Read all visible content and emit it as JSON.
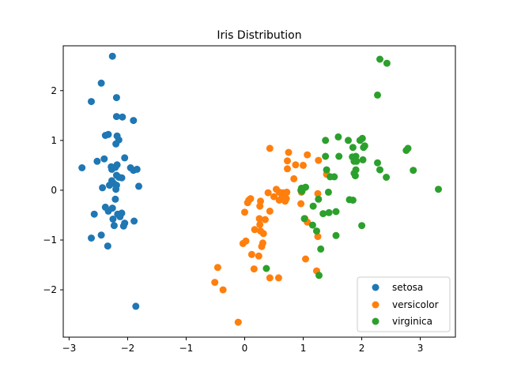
{
  "chart_data": {
    "type": "scatter",
    "title": "Iris Distribution",
    "xlabel": "",
    "ylabel": "",
    "xlim": [
      -3.1,
      3.6
    ],
    "ylim": [
      -2.95,
      2.9
    ],
    "xticks": [
      -3,
      -2,
      -1,
      0,
      1,
      2,
      3
    ],
    "xtick_labels": [
      "−3",
      "−2",
      "−1",
      "0",
      "1",
      "2",
      "3"
    ],
    "yticks": [
      -2,
      -1,
      0,
      1,
      2
    ],
    "ytick_labels": [
      "−2",
      "−1",
      "0",
      "1",
      "2"
    ],
    "grid": false,
    "legend_position": "lower-right",
    "series": [
      {
        "name": "setosa",
        "color": "#1f77b4",
        "points": [
          [
            -2.26,
            2.69
          ],
          [
            -2.45,
            2.15
          ],
          [
            -2.62,
            1.78
          ],
          [
            -2.19,
            1.86
          ],
          [
            -2.19,
            1.48
          ],
          [
            -2.09,
            1.47
          ],
          [
            -1.9,
            1.4
          ],
          [
            -2.33,
            1.12
          ],
          [
            -2.38,
            1.1
          ],
          [
            -2.18,
            1.09
          ],
          [
            -2.15,
            1.01
          ],
          [
            -2.2,
            0.93
          ],
          [
            -2.52,
            0.58
          ],
          [
            -2.4,
            0.63
          ],
          [
            -2.05,
            0.65
          ],
          [
            -2.78,
            0.45
          ],
          [
            -2.28,
            0.47
          ],
          [
            -2.27,
            0.42
          ],
          [
            -2.18,
            0.51
          ],
          [
            -2.21,
            0.46
          ],
          [
            -1.95,
            0.45
          ],
          [
            -1.9,
            0.4
          ],
          [
            -1.84,
            0.42
          ],
          [
            -2.19,
            0.3
          ],
          [
            -2.15,
            0.26
          ],
          [
            -2.1,
            0.25
          ],
          [
            -2.27,
            0.19
          ],
          [
            -2.31,
            0.1
          ],
          [
            -2.24,
            0.14
          ],
          [
            -2.19,
            0.1
          ],
          [
            -2.43,
            0.05
          ],
          [
            -2.2,
            0.02
          ],
          [
            -1.81,
            0.08
          ],
          [
            -2.21,
            -0.18
          ],
          [
            -2.26,
            -0.36
          ],
          [
            -2.38,
            -0.34
          ],
          [
            -2.33,
            -0.42
          ],
          [
            -2.57,
            -0.48
          ],
          [
            -2.17,
            -0.48
          ],
          [
            -2.1,
            -0.46
          ],
          [
            -2.13,
            -0.53
          ],
          [
            -2.25,
            -0.58
          ],
          [
            -1.89,
            -0.62
          ],
          [
            -2.05,
            -0.66
          ],
          [
            -2.23,
            -0.71
          ],
          [
            -2.07,
            -0.72
          ],
          [
            -2.45,
            -0.9
          ],
          [
            -2.62,
            -0.96
          ],
          [
            -2.34,
            -1.12
          ],
          [
            -1.86,
            -2.33
          ]
        ]
      },
      {
        "name": "versicolor",
        "color": "#ff7f0e",
        "points": [
          [
            0.43,
            0.84
          ],
          [
            0.75,
            0.76
          ],
          [
            1.07,
            0.71
          ],
          [
            0.73,
            0.59
          ],
          [
            1.0,
            0.5
          ],
          [
            0.87,
            0.51
          ],
          [
            1.26,
            0.6
          ],
          [
            0.73,
            0.43
          ],
          [
            1.4,
            0.32
          ],
          [
            0.84,
            0.23
          ],
          [
            0.54,
            0.02
          ],
          [
            0.59,
            -0.04
          ],
          [
            0.65,
            -0.05
          ],
          [
            0.72,
            -0.04
          ],
          [
            0.4,
            -0.05
          ],
          [
            0.64,
            -0.12
          ],
          [
            0.69,
            -0.22
          ],
          [
            0.5,
            -0.13
          ],
          [
            0.27,
            -0.22
          ],
          [
            0.26,
            -0.32
          ],
          [
            0.07,
            -0.2
          ],
          [
            0.1,
            -0.17
          ],
          [
            0.05,
            -0.25
          ],
          [
            0.71,
            -0.17
          ],
          [
            0.59,
            -0.2
          ],
          [
            0.43,
            -0.42
          ],
          [
            0.0,
            -0.44
          ],
          [
            1.25,
            -0.07
          ],
          [
            0.97,
            -0.04
          ],
          [
            0.25,
            -0.57
          ],
          [
            0.35,
            -0.59
          ],
          [
            0.96,
            -0.27
          ],
          [
            1.03,
            -0.57
          ],
          [
            1.07,
            -0.64
          ],
          [
            0.26,
            -0.69
          ],
          [
            0.27,
            -0.82
          ],
          [
            0.17,
            -0.79
          ],
          [
            0.32,
            -0.87
          ],
          [
            0.31,
            -1.06
          ],
          [
            0.02,
            -1.02
          ],
          [
            -0.03,
            -1.07
          ],
          [
            1.25,
            -0.93
          ],
          [
            0.12,
            -1.29
          ],
          [
            0.29,
            -1.13
          ],
          [
            1.04,
            -1.38
          ],
          [
            0.24,
            -1.32
          ],
          [
            0.43,
            -1.76
          ],
          [
            0.16,
            -1.58
          ],
          [
            0.58,
            -1.76
          ],
          [
            1.23,
            -1.62
          ],
          [
            -0.46,
            -1.55
          ],
          [
            -0.51,
            -1.85
          ],
          [
            -0.37,
            -2.0
          ],
          [
            -0.11,
            -2.65
          ]
        ]
      },
      {
        "name": "virginica",
        "color": "#2ca02c",
        "points": [
          [
            2.31,
            2.63
          ],
          [
            2.43,
            2.55
          ],
          [
            2.27,
            1.91
          ],
          [
            1.38,
            1.0
          ],
          [
            1.6,
            1.07
          ],
          [
            1.77,
            1.0
          ],
          [
            2.01,
            1.04
          ],
          [
            1.97,
            1.0
          ],
          [
            2.05,
            0.89
          ],
          [
            1.85,
            0.86
          ],
          [
            2.03,
            0.86
          ],
          [
            2.79,
            0.84
          ],
          [
            2.76,
            0.8
          ],
          [
            1.38,
            0.68
          ],
          [
            1.61,
            0.68
          ],
          [
            1.84,
            0.67
          ],
          [
            1.9,
            0.68
          ],
          [
            1.87,
            0.58
          ],
          [
            2.02,
            0.61
          ],
          [
            1.91,
            0.58
          ],
          [
            2.27,
            0.55
          ],
          [
            1.4,
            0.41
          ],
          [
            2.31,
            0.41
          ],
          [
            2.88,
            0.4
          ],
          [
            1.9,
            0.41
          ],
          [
            1.87,
            0.34
          ],
          [
            1.46,
            0.27
          ],
          [
            1.53,
            0.27
          ],
          [
            1.89,
            0.29
          ],
          [
            2.42,
            0.26
          ],
          [
            1.04,
            0.06
          ],
          [
            0.97,
            0.04
          ],
          [
            0.96,
            0.0
          ],
          [
            0.98,
            -0.02
          ],
          [
            1.43,
            -0.04
          ],
          [
            3.31,
            0.02
          ],
          [
            1.26,
            -0.18
          ],
          [
            1.79,
            -0.19
          ],
          [
            1.85,
            -0.2
          ],
          [
            1.17,
            -0.32
          ],
          [
            1.56,
            -0.43
          ],
          [
            1.44,
            -0.45
          ],
          [
            1.34,
            -0.47
          ],
          [
            1.02,
            -0.57
          ],
          [
            1.16,
            -0.7
          ],
          [
            1.23,
            -0.82
          ],
          [
            2.0,
            -0.71
          ],
          [
            1.56,
            -0.91
          ],
          [
            1.3,
            -1.18
          ],
          [
            0.37,
            -1.57
          ],
          [
            1.27,
            -1.71
          ]
        ]
      }
    ]
  }
}
